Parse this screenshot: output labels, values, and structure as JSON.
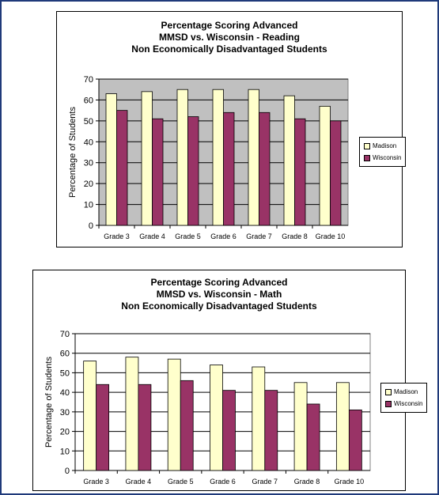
{
  "chart_data": [
    {
      "type": "bar",
      "title_lines": [
        "Percentage Scoring Advanced",
        "MMSD vs. Wisconsin - Reading",
        "Non Economically Disadvantaged Students"
      ],
      "categories": [
        "Grade 3",
        "Grade 4",
        "Grade 5",
        "Grade 6",
        "Grade 7",
        "Grade 8",
        "Grade 10"
      ],
      "series": [
        {
          "name": "Madison",
          "values": [
            63,
            64,
            65,
            65,
            65,
            62,
            57
          ],
          "color": "#ffffcc"
        },
        {
          "name": "Wisconsin",
          "values": [
            55,
            51,
            52,
            54,
            54,
            51,
            50
          ],
          "color": "#993366"
        }
      ],
      "xlabel": "",
      "ylabel": "Percentage of Students",
      "ylim": [
        0,
        70
      ],
      "yticks": [
        "0",
        "10",
        "20",
        "30",
        "40",
        "50",
        "60",
        "70"
      ],
      "grid": true,
      "legend": "right",
      "plot_background": "#c0c0c0"
    },
    {
      "type": "bar",
      "title_lines": [
        "Percentage Scoring Advanced",
        "MMSD vs. Wisconsin - Math",
        "Non Economically Disadvantaged Students"
      ],
      "categories": [
        "Grade 3",
        "Grade 4",
        "Grade 5",
        "Grade 6",
        "Grade 7",
        "Grade 8",
        "Grade 10"
      ],
      "series": [
        {
          "name": "Madison",
          "values": [
            56,
            58,
            57,
            54,
            53,
            45,
            45
          ],
          "color": "#ffffcc"
        },
        {
          "name": "Wisconsin",
          "values": [
            44,
            44,
            46,
            41,
            41,
            34,
            31
          ],
          "color": "#993366"
        }
      ],
      "xlabel": "",
      "ylabel": "Percentage of Students",
      "ylim": [
        0,
        70
      ],
      "yticks": [
        "0",
        "10",
        "20",
        "30",
        "40",
        "50",
        "60",
        "70"
      ],
      "grid": true,
      "legend": "right",
      "plot_background": "#ffffff"
    }
  ]
}
